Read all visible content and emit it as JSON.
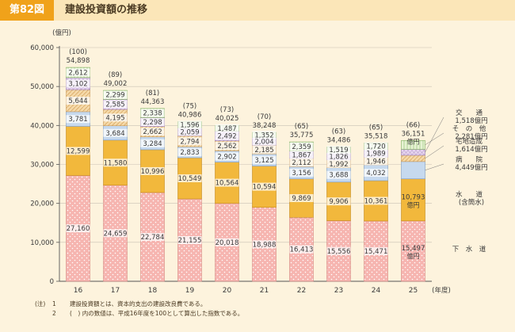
{
  "header": {
    "badge": "第82図",
    "title": "建設投資額の推移"
  },
  "chart_data": {
    "type": "bar",
    "stacked": true,
    "title": "建設投資額の推移",
    "ylabel": "(億円)",
    "xlabel": "(年度)",
    "ylim": [
      0,
      60000
    ],
    "yticks": [
      "0",
      "10,000",
      "20,000",
      "30,000",
      "40,000",
      "50,000",
      "60,000"
    ],
    "categories": [
      "16",
      "17",
      "18",
      "19",
      "20",
      "21",
      "22",
      "23",
      "24",
      "25"
    ],
    "series": [
      {
        "name": "下水道",
        "color": "#f6b5b0",
        "values": [
          27160,
          24659,
          22784,
          21155,
          20018,
          18988,
          16413,
          15556,
          15471,
          15497
        ],
        "labels": [
          "27,160",
          "24,659",
          "22,784",
          "21,155",
          "20,018",
          "18,988",
          "16,413",
          "15,556",
          "15,471",
          "15,497"
        ]
      },
      {
        "name": "水道",
        "color": "#f2b83c",
        "values": [
          12599,
          11580,
          10996,
          10549,
          10564,
          10594,
          9869,
          9906,
          10361,
          10793
        ],
        "labels": [
          "12,599",
          "11,580",
          "10,996",
          "10,549",
          "10,564",
          "10,594",
          "9,869",
          "9,906",
          "10,361",
          "10,793"
        ]
      },
      {
        "name": "病院",
        "color": "#c6d9ee",
        "values": [
          3781,
          3684,
          3284,
          2833,
          2902,
          3125,
          3156,
          3688,
          4032,
          4449
        ],
        "labels": [
          "3,781",
          "3,684",
          "3,284",
          "2,833",
          "2,902",
          "3,125",
          "3,156",
          "3,688",
          "4,032",
          ""
        ]
      },
      {
        "name": "宅地造成",
        "color": "#f5d9a8",
        "values": [
          5644,
          4195,
          2662,
          2794,
          2562,
          2185,
          2112,
          1992,
          1946,
          1614
        ],
        "labels": [
          "5,644",
          "4,195",
          "2,662",
          "2,794",
          "2,562",
          "2,185",
          "2,112",
          "1,992",
          "1,946",
          ""
        ]
      },
      {
        "name": "交通",
        "color": "#e4d3ee",
        "values": [
          3102,
          2585,
          2298,
          2059,
          2492,
          2004,
          1867,
          1826,
          1989,
          1518
        ],
        "labels": [
          "3,102",
          "2,585",
          "2,298",
          "2,059",
          "2,492",
          "2,004",
          "1,867",
          "1,826",
          "1,989",
          ""
        ]
      },
      {
        "name": "その他",
        "color": "#e6f2d3",
        "values": [
          2612,
          2299,
          2338,
          1596,
          1487,
          1352,
          2359,
          1519,
          1720,
          2281
        ],
        "labels": [
          "2,612",
          "2,299",
          "2,338",
          "1,596",
          "1,487",
          "1,352",
          "2,359",
          "1,519",
          "1,720",
          ""
        ]
      }
    ],
    "totals": [
      54898,
      49002,
      44363,
      40986,
      40025,
      38248,
      35775,
      34486,
      35518,
      36151
    ],
    "total_labels": [
      "54,898",
      "49,002",
      "44,363",
      "40,986",
      "40,025",
      "38,248",
      "35,775",
      "34,486",
      "35,518",
      "36,151"
    ],
    "index_labels": [
      "(100)",
      "(89)",
      "(81)",
      "(75)",
      "(73)",
      "(70)",
      "(65)",
      "(63)",
      "(65)",
      "(66)"
    ],
    "last_bar_unit": "億円",
    "side_legend": [
      {
        "line1": "そ　の　他",
        "line2": "2,281億円"
      },
      {
        "line1": "交　　通",
        "line2": "1,518億円"
      },
      {
        "line1": "宅地造成",
        "line2": "1,614億円"
      },
      {
        "line1": "病　　院",
        "line2": "4,449億円"
      },
      {
        "line1": "水　　道",
        "line2": "(含簡水)"
      },
      {
        "line1": "下　水　道",
        "line2": ""
      }
    ]
  },
  "notes": [
    {
      "mark": "(注)",
      "num": "1",
      "text": "建設投資額とは、資本的支出の建設改良費である。"
    },
    {
      "mark": "",
      "num": "2",
      "text": "(　) 内の数値は、平成16年度を100として算出した指数である。"
    }
  ]
}
